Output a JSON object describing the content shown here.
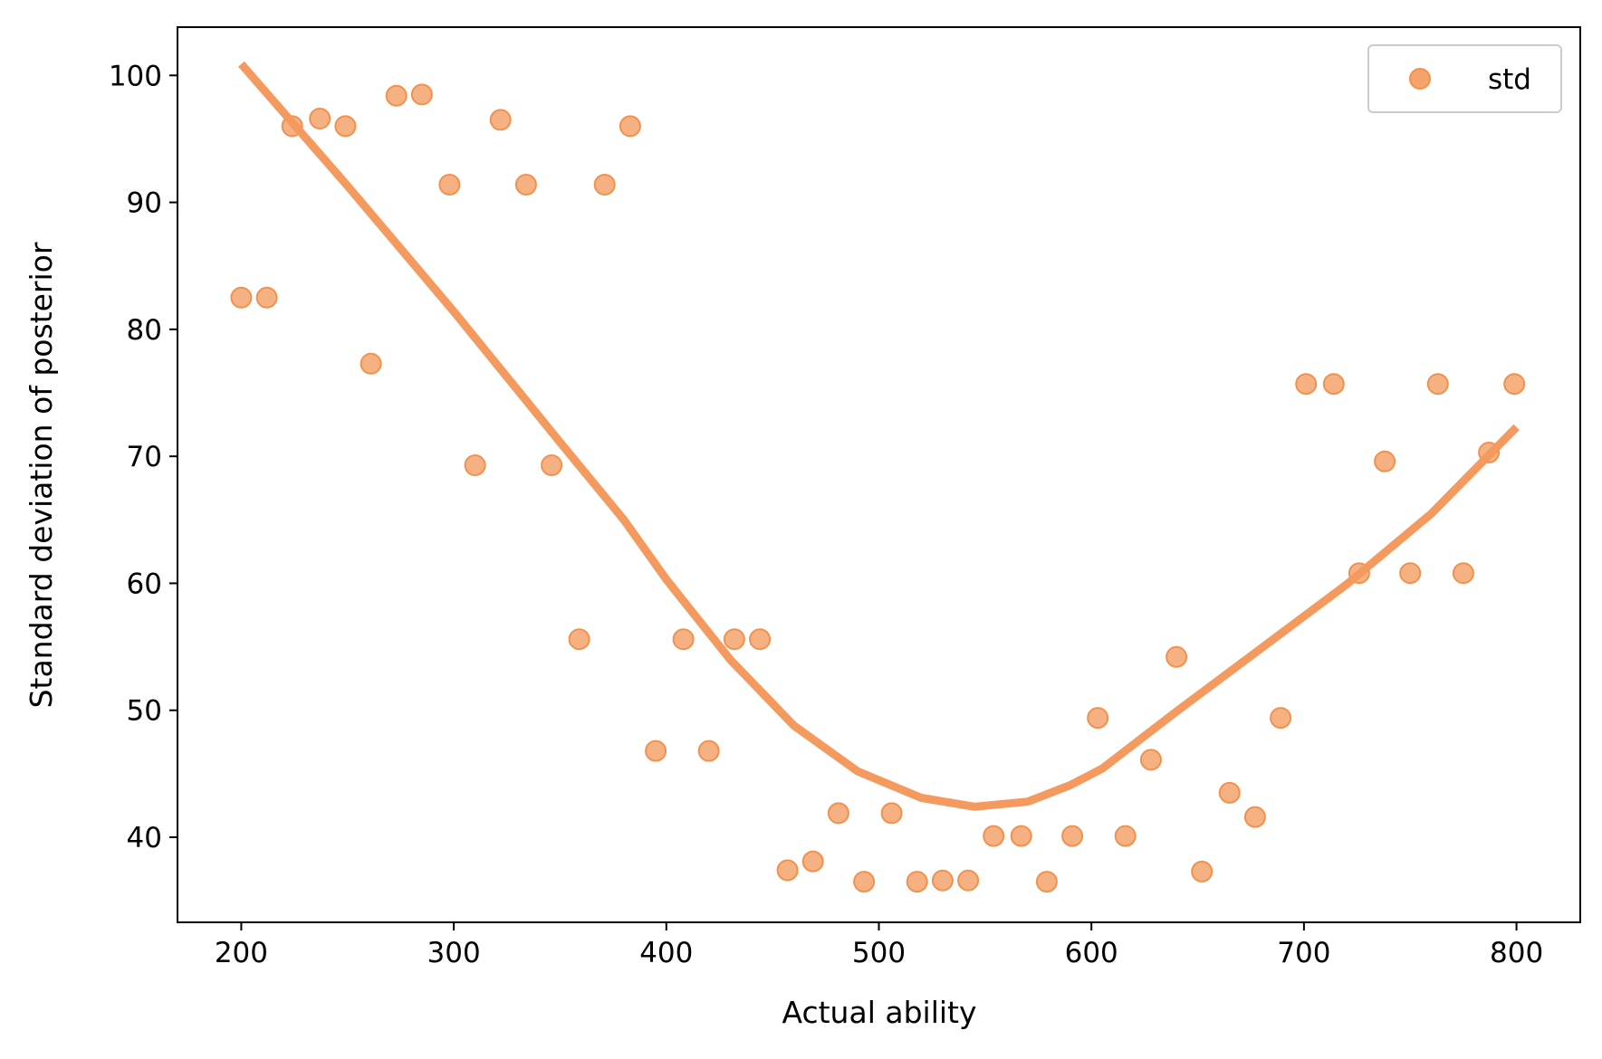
{
  "chart_data": {
    "type": "scatter",
    "xlabel": "Actual ability",
    "ylabel": "Standard deviation of posterior",
    "xlim": [
      170,
      830
    ],
    "ylim": [
      33.3,
      103.8
    ],
    "xticks": [
      200,
      300,
      400,
      500,
      600,
      700,
      800
    ],
    "yticks": [
      40,
      50,
      60,
      70,
      80,
      90,
      100
    ],
    "grid": false,
    "legend_position": "top-right",
    "colors": {
      "points": "#f4a36c",
      "point_edge": "#f0924e",
      "curve": "#f49a5e",
      "axes": "#000000"
    },
    "series": [
      {
        "name": "std",
        "kind": "scatter",
        "x": [
          200,
          212,
          224,
          237,
          249,
          261,
          273,
          285,
          298,
          310,
          322,
          334,
          346,
          359,
          371,
          383,
          395,
          408,
          420,
          432,
          444,
          457,
          469,
          481,
          493,
          506,
          518,
          530,
          542,
          554,
          567,
          579,
          591,
          603,
          616,
          628,
          640,
          652,
          665,
          677,
          689,
          701,
          714,
          726,
          738,
          750,
          763,
          775,
          787,
          799
        ],
        "y": [
          82.5,
          82.5,
          96.0,
          96.6,
          96.0,
          77.3,
          98.4,
          98.5,
          91.4,
          69.3,
          96.5,
          91.4,
          69.3,
          55.6,
          91.4,
          96.0,
          46.8,
          55.6,
          46.8,
          55.6,
          55.6,
          37.4,
          38.1,
          41.9,
          36.5,
          41.9,
          36.5,
          36.6,
          36.6,
          40.1,
          40.1,
          36.5,
          40.1,
          49.4,
          40.1,
          46.1,
          54.2,
          37.3,
          43.5,
          41.6,
          49.4,
          75.7,
          75.7,
          60.8,
          69.6,
          60.8,
          75.7,
          60.8,
          70.3,
          75.7
        ]
      },
      {
        "kind": "line",
        "x": [
          200,
          250,
          300,
          350,
          380,
          400,
          430,
          460,
          490,
          520,
          545,
          570,
          590,
          605,
          640,
          680,
          720,
          760,
          800
        ],
        "y": [
          100.9,
          91.3,
          81.4,
          71.1,
          65.0,
          60.3,
          54.0,
          48.8,
          45.2,
          43.1,
          42.4,
          42.8,
          44.1,
          45.4,
          49.9,
          54.9,
          59.9,
          65.5,
          72.3
        ]
      }
    ]
  }
}
